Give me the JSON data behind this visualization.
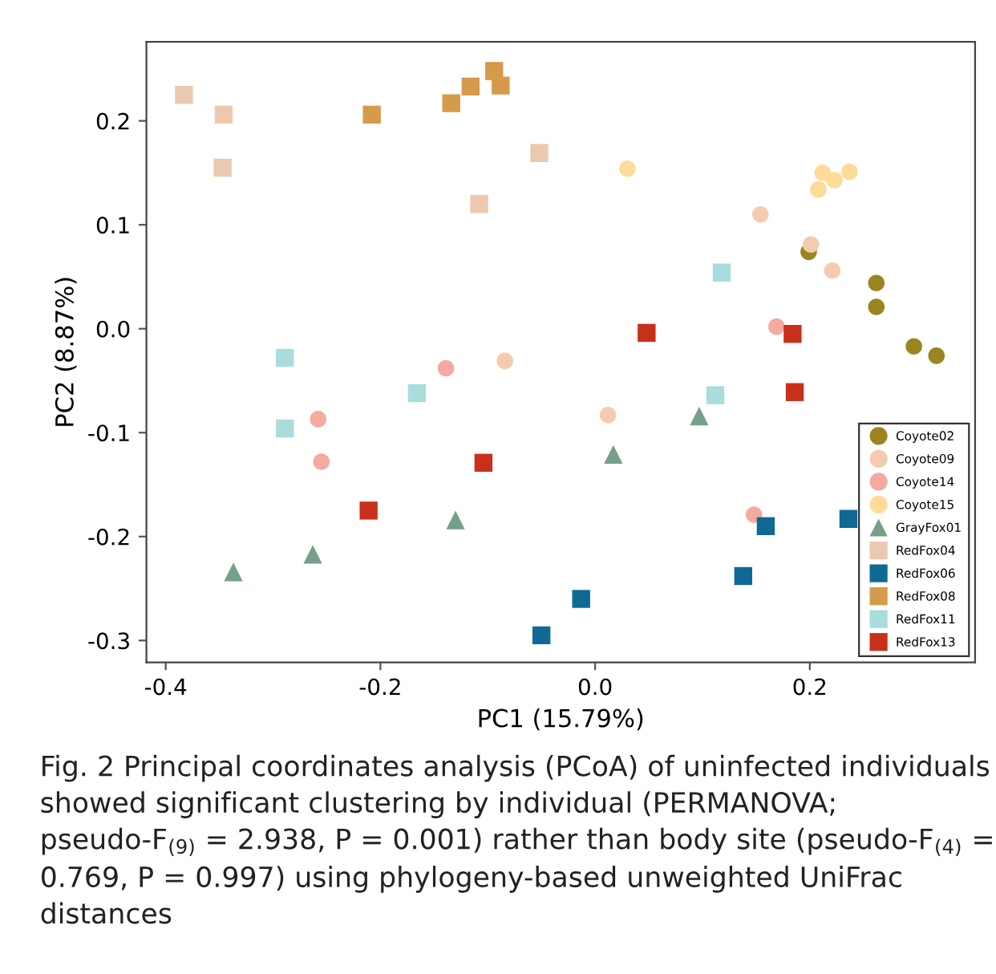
{
  "chart_data": {
    "type": "scatter",
    "xlabel": "PC1 (15.79%)",
    "ylabel": "PC2 (8.87%)",
    "xlim": [
      -0.418,
      0.354
    ],
    "ylim": [
      -0.321,
      0.276
    ],
    "xticks": [
      {
        "value": -0.4,
        "label": "-0.4"
      },
      {
        "value": -0.2,
        "label": "-0.2"
      },
      {
        "value": 0.0,
        "label": "0.0"
      },
      {
        "value": 0.2,
        "label": "0.2"
      }
    ],
    "yticks": [
      {
        "value": -0.3,
        "label": "-0.3"
      },
      {
        "value": -0.2,
        "label": "-0.2"
      },
      {
        "value": -0.1,
        "label": "-0.1"
      },
      {
        "value": 0.0,
        "label": "0.0"
      },
      {
        "value": 0.1,
        "label": "0.1"
      },
      {
        "value": 0.2,
        "label": "0.2"
      }
    ],
    "grid": false,
    "legend": "bottom right",
    "series": [
      {
        "name": "Coyote02",
        "color": "#9a8520",
        "marker": "circle",
        "x": [
          0.199,
          0.262,
          0.262,
          0.297,
          0.318
        ],
        "values": [
          0.074,
          0.044,
          0.021,
          -0.017,
          -0.026
        ]
      },
      {
        "name": "Coyote09",
        "color": "#f5cbb0",
        "marker": "circle",
        "x": [
          0.154,
          0.201,
          0.221,
          -0.084,
          0.012
        ],
        "values": [
          0.11,
          0.081,
          0.056,
          -0.031,
          -0.083
        ]
      },
      {
        "name": "Coyote14",
        "color": "#f4aaa0",
        "marker": "circle",
        "x": [
          0.169,
          -0.139,
          -0.258,
          -0.255,
          0.148
        ],
        "values": [
          0.002,
          -0.038,
          -0.087,
          -0.128,
          -0.179
        ]
      },
      {
        "name": "Coyote15",
        "color": "#fddc9a",
        "marker": "circle",
        "x": [
          0.03,
          0.212,
          0.223,
          0.237,
          0.208
        ],
        "values": [
          0.154,
          0.15,
          0.143,
          0.151,
          0.134
        ]
      },
      {
        "name": "GrayFox01",
        "color": "#75a08a",
        "marker": "triangle",
        "x": [
          0.097,
          0.017,
          -0.13,
          -0.263,
          -0.337
        ],
        "values": [
          -0.084,
          -0.121,
          -0.184,
          -0.217,
          -0.234
        ]
      },
      {
        "name": "RedFox04",
        "color": "#ecc9ae",
        "marker": "square",
        "x": [
          -0.383,
          -0.346,
          -0.347,
          -0.108,
          -0.052
        ],
        "values": [
          0.225,
          0.206,
          0.155,
          0.12,
          0.169
        ]
      },
      {
        "name": "RedFox06",
        "color": "#0e6a94",
        "marker": "square",
        "x": [
          0.159,
          0.236,
          0.138,
          -0.013,
          -0.05
        ],
        "values": [
          -0.19,
          -0.183,
          -0.238,
          -0.26,
          -0.295
        ]
      },
      {
        "name": "RedFox08",
        "color": "#d59a4a",
        "marker": "square",
        "x": [
          -0.208,
          -0.134,
          -0.116,
          -0.094,
          -0.088
        ],
        "values": [
          0.206,
          0.217,
          0.233,
          0.248,
          0.234
        ]
      },
      {
        "name": "RedFox11",
        "color": "#a9dcdc",
        "marker": "square",
        "x": [
          0.118,
          0.112,
          -0.289,
          -0.289,
          -0.166
        ],
        "values": [
          0.054,
          -0.064,
          -0.028,
          -0.096,
          -0.062
        ]
      },
      {
        "name": "RedFox13",
        "color": "#c9301a",
        "marker": "square",
        "x": [
          0.048,
          0.184,
          0.186,
          -0.104,
          -0.211
        ],
        "values": [
          -0.004,
          -0.005,
          -0.061,
          -0.129,
          -0.175
        ]
      }
    ],
    "annotations": [
      "Fig. 2 Principal coordinates analysis (PCoA) of uninfected individuals showed significant clustering by individual (PERMANOVA; pseudo-F$_{(9)}$ = 2.938, P = 0.001) rather than body site (pseudo-F$_{(4)}$ = 0.769, P = 0.997) using phylogeny-based unweighted UniFrac distances"
    ]
  }
}
